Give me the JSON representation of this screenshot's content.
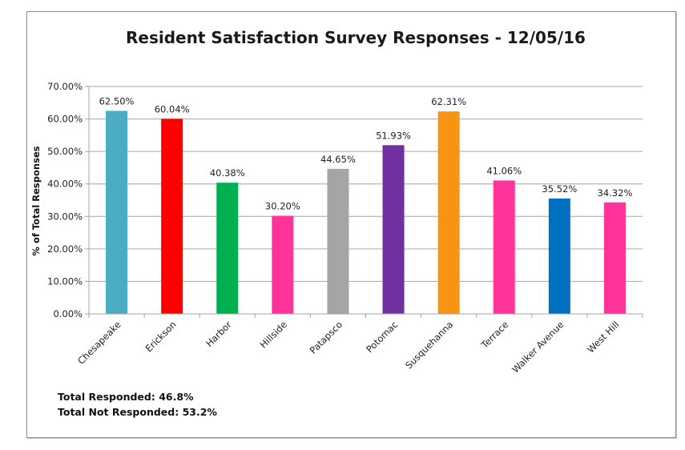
{
  "chart_data": {
    "type": "bar",
    "title": "Resident Satisfaction Survey Responses - 12/05/16",
    "xlabel": "",
    "ylabel": "% of Total Responses",
    "ylim": [
      0,
      70
    ],
    "yticks": [
      0,
      10,
      20,
      30,
      40,
      50,
      60,
      70
    ],
    "ytick_labels": [
      "0.00%",
      "10.00%",
      "20.00%",
      "30.00%",
      "40.00%",
      "50.00%",
      "60.00%",
      "70.00%"
    ],
    "grid": true,
    "legend": "none",
    "categories": [
      "Chesapeake",
      "Erickson",
      "Harbor",
      "Hillside",
      "Patapsco",
      "Potomac",
      "Susquehanna",
      "Terrace",
      "Walker Avenue",
      "West Hill"
    ],
    "values": [
      62.5,
      60.04,
      40.38,
      30.2,
      44.65,
      51.93,
      62.31,
      41.06,
      35.52,
      34.32
    ],
    "data_labels": [
      "62.50%",
      "60.04%",
      "40.38%",
      "30.20%",
      "44.65%",
      "51.93%",
      "62.31%",
      "41.06%",
      "35.52%",
      "34.32%"
    ],
    "colors": [
      "#4bacc6",
      "#ff0000",
      "#00b050",
      "#ff3399",
      "#a5a5a5",
      "#7030a0",
      "#f79413",
      "#ff3399",
      "#0070c0",
      "#ff3399"
    ]
  },
  "annotations": {
    "total_responded": "Total Responded: 46.8%",
    "total_not_responded": "Total Not Responded: 53.2%"
  }
}
